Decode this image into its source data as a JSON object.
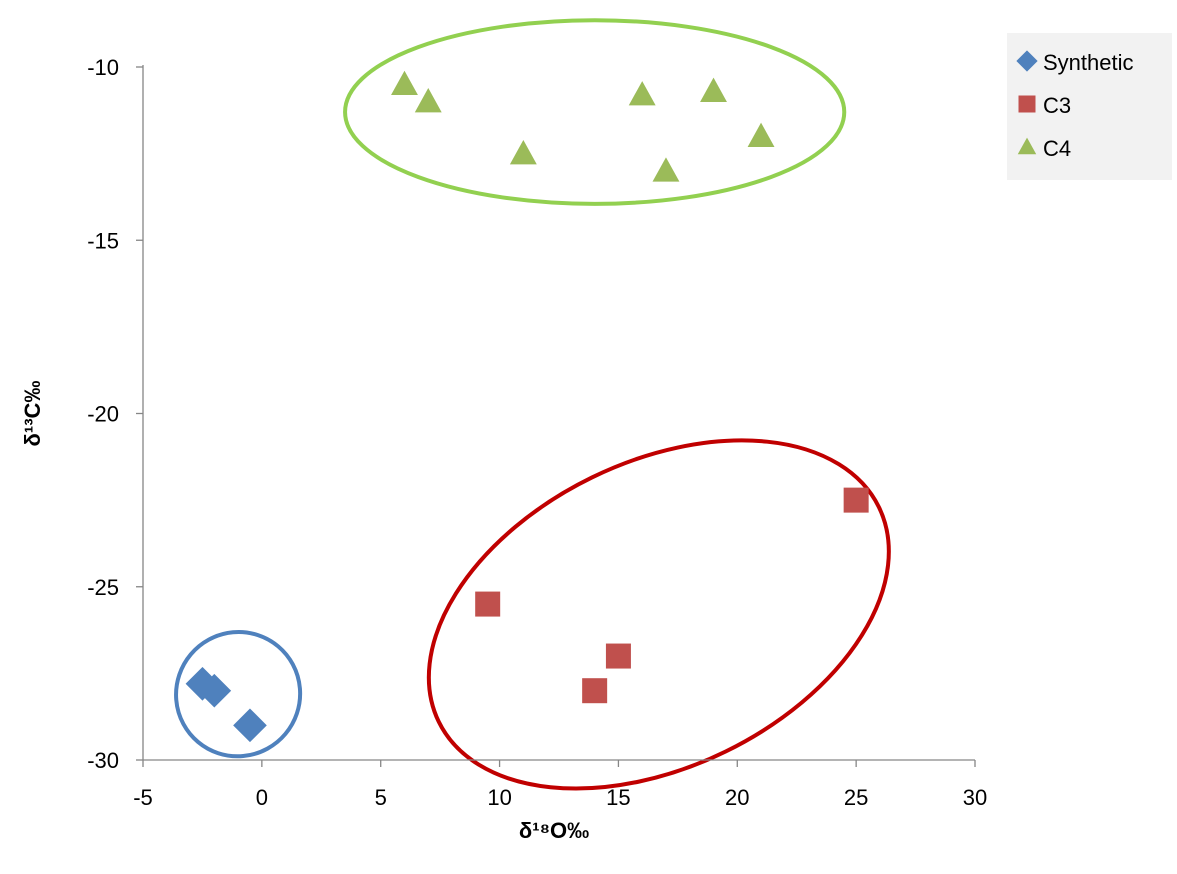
{
  "chart_data": {
    "type": "scatter",
    "title": "",
    "xlabel": "δ¹⁸O‰",
    "ylabel": "δ¹³C‰",
    "xlim": [
      -5,
      30
    ],
    "ylim": [
      -30,
      -10
    ],
    "xticks": [
      -5,
      0,
      5,
      10,
      15,
      20,
      25,
      30
    ],
    "yticks": [
      -10,
      -15,
      -20,
      -25,
      -30
    ],
    "grid": false,
    "legend_position": "top-right",
    "series": [
      {
        "name": "Synthetic",
        "marker": "diamond",
        "color": "#4F81BD",
        "x": [
          -2.5,
          -2.0,
          -0.5
        ],
        "y": [
          -27.8,
          -28.0,
          -29.0
        ]
      },
      {
        "name": "C3",
        "marker": "square",
        "color": "#C0504D",
        "x": [
          9.5,
          14.0,
          15.0,
          25.0
        ],
        "y": [
          -25.5,
          -28.0,
          -27.0,
          -22.5
        ]
      },
      {
        "name": "C4",
        "marker": "triangle",
        "color": "#9BBB59",
        "x": [
          6.0,
          7.0,
          11.0,
          16.0,
          17.0,
          19.0,
          21.0
        ],
        "y": [
          -10.5,
          -11.0,
          -12.5,
          -10.8,
          -13.0,
          -10.7,
          -12.0
        ]
      }
    ],
    "ellipses": [
      {
        "group": "Synthetic",
        "color": "#4F81BD",
        "cx": -1.0,
        "cy": -28.1,
        "rx": 2.6,
        "ry": 1.8,
        "angle_deg": 40
      },
      {
        "group": "C3",
        "color": "#C00000",
        "cx": 16.7,
        "cy": -25.8,
        "rx": 10.3,
        "ry": 4.4,
        "angle_deg": -26
      },
      {
        "group": "C4",
        "color": "#92D050",
        "cx": 14.0,
        "cy": -11.3,
        "rx": 10.5,
        "ry": 2.65,
        "angle_deg": 0
      }
    ]
  }
}
